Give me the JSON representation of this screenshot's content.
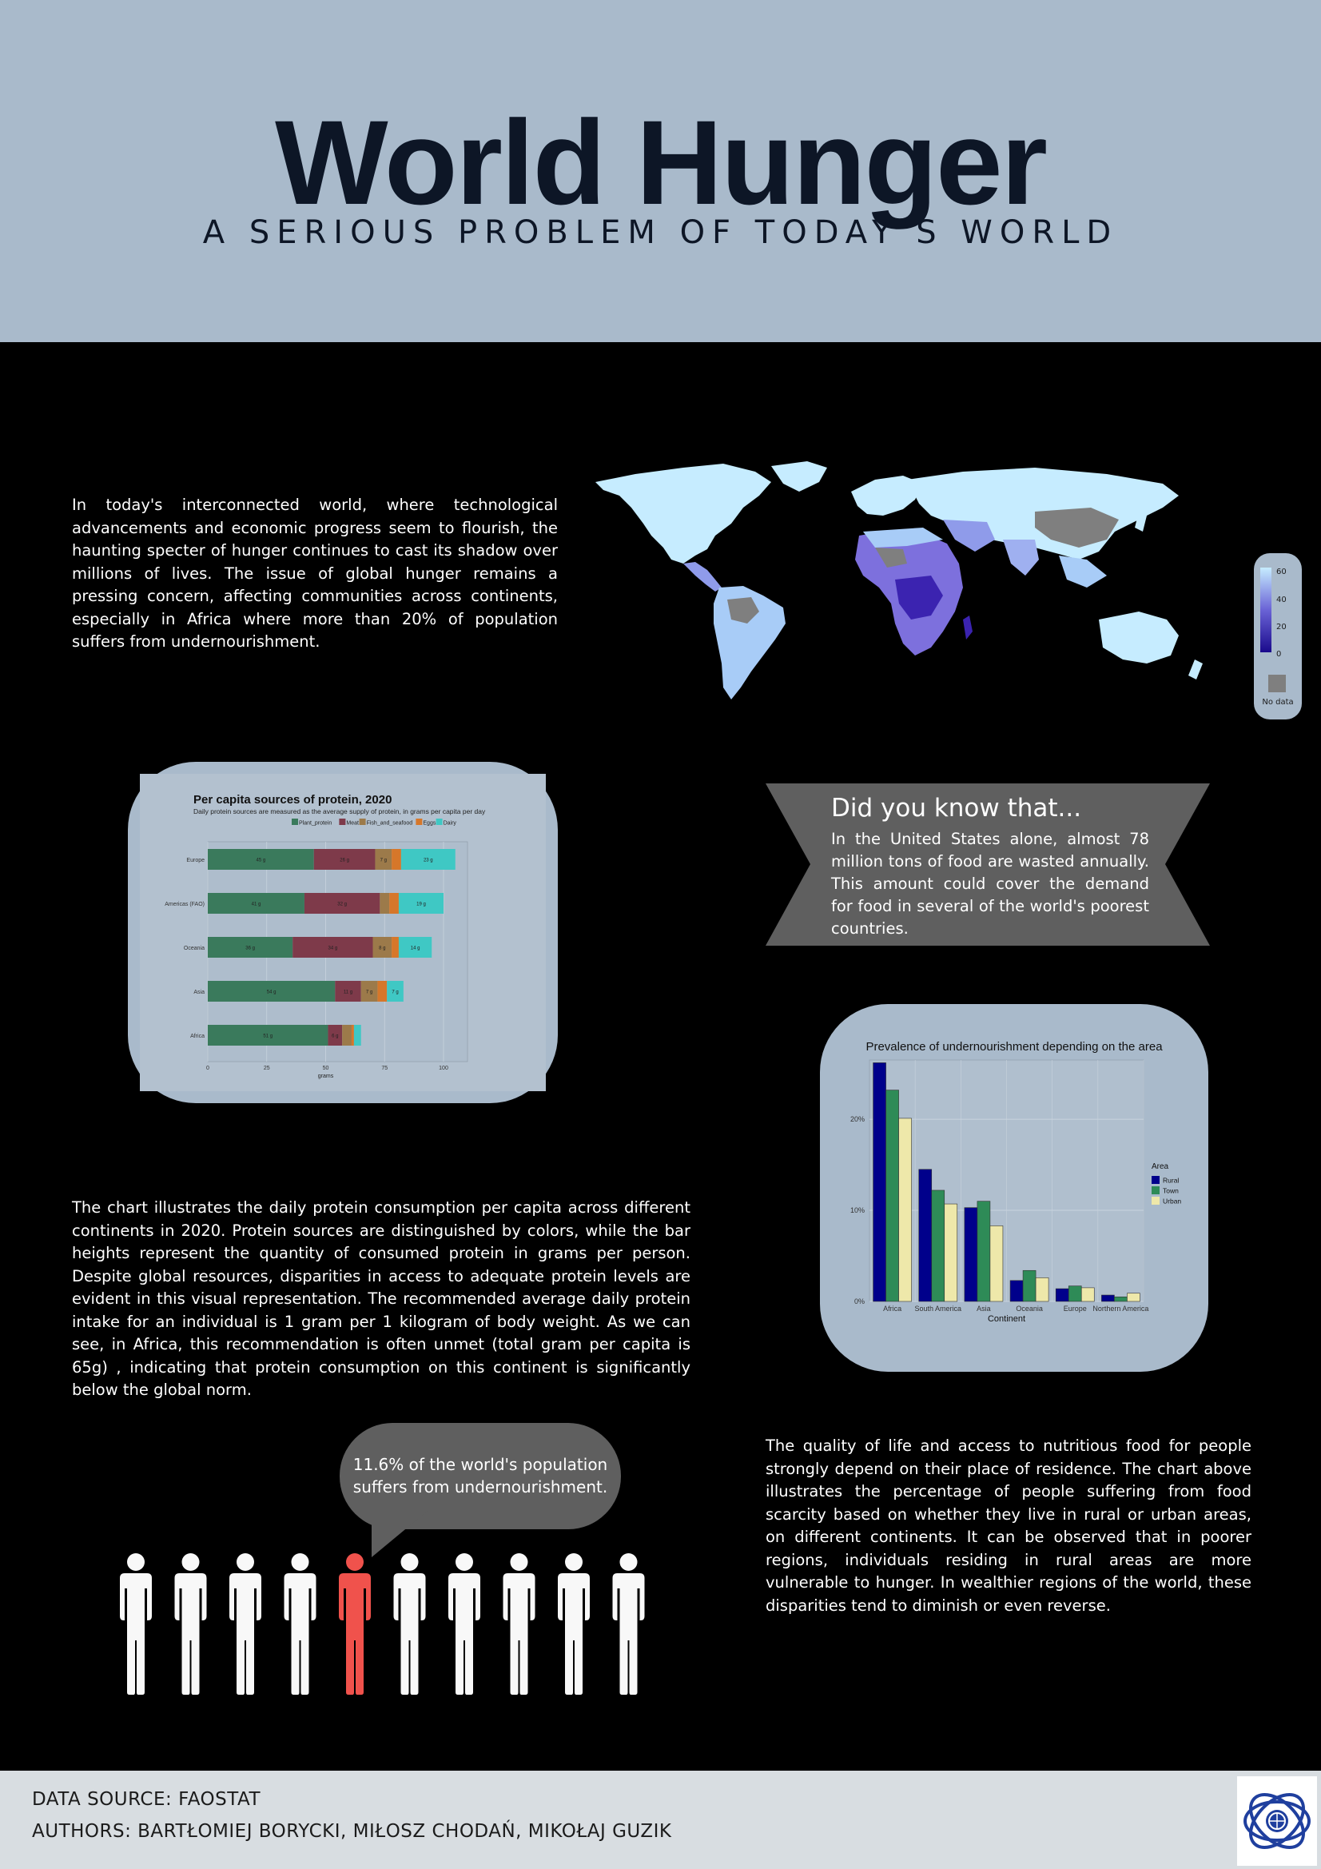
{
  "header": {
    "title": "World Hunger",
    "subtitle": "A SERIOUS PROBLEM OF TODAY’S WORLD"
  },
  "intro_text": "In today's interconnected world, where technological advancements and economic progress seem to flourish, the haunting specter of hunger continues to cast its shadow over millions of lives. The issue of global hunger remains a pressing concern, affecting communities across continents, especially in Africa where more than  20% of population suffers from undernourishment.",
  "map": {
    "legend_ticks": [
      "60",
      "40",
      "20",
      "0"
    ],
    "no_data_label": "No data",
    "colors": {
      "high": "#1a0a8c",
      "low": "#c6ecff",
      "no_data": "#7f7f7f"
    }
  },
  "did_you_know": {
    "title": "Did you know that...",
    "text": "In the United States alone, almost 78 million tons of food are wasted annually. This amount could cover the demand for food in several of the world's poorest countries."
  },
  "protein_text": "The chart illustrates the daily protein consumption per capita across different continents in 2020. Protein sources are distinguished by colors, while the bar heights represent the quantity of consumed protein in grams per person. Despite global resources, disparities in access to adequate protein levels are evident in this visual representation. The recommended average daily protein intake for an individual is 1 gram per 1 kilogram of body weight. As we can see, in Africa, this recommendation is often unmet (total gram per capita is 65g) , indicating that protein consumption on this continent is significantly below the global norm.",
  "area_text": "The quality of life and access to nutritious food for people strongly depend on their place of residence. The chart above illustrates the percentage of people suffering from food scarcity based on whether they live in rural or urban areas, on different continents. It can be observed that in poorer regions, individuals residing in rural areas are more vulnerable to hunger. In wealthier regions of the world, these disparities tend to diminish or even reverse.",
  "bubble_text": "11.6% of the world's population suffers from undernourishment.",
  "people": {
    "total": 10,
    "highlighted_index": 4,
    "color": "#f8f8f8",
    "highlight_color": "#f0524c"
  },
  "footer": {
    "source": "DATA SOURCE: FAOSTAT",
    "authors": "AUTHORS: BARTŁOMIEJ BORYCKI, MIŁOSZ CHODAŃ, MIKOŁAJ GUZIK"
  },
  "chart_data": [
    {
      "type": "bar",
      "orientation": "horizontal",
      "stacked": true,
      "title": "Per capita sources of protein, 2020",
      "subtitle": "Daily protein sources are measured as the average supply of protein, in grams per capita per day",
      "xlabel": "grams",
      "xlim": [
        0,
        100
      ],
      "xticks": [
        "0",
        "25",
        "50",
        "75",
        "100"
      ],
      "categories": [
        "Europe",
        "Americas (FAO)",
        "Oceania",
        "Asia",
        "Africa"
      ],
      "series": [
        {
          "name": "Plant_protein",
          "color": "#3a7a5c",
          "values": [
            45,
            41,
            36,
            54,
            51
          ],
          "labels": [
            "45 g",
            "41 g",
            "36 g",
            "54 g",
            "51 g"
          ]
        },
        {
          "name": "Meat",
          "color": "#7e3a4a",
          "values": [
            26,
            32,
            34,
            11,
            6
          ],
          "labels": [
            "26 g",
            "32 g",
            "34 g",
            "11 g",
            "6 g"
          ]
        },
        {
          "name": "Fish_and_seafood",
          "color": "#9c7a4a",
          "values": [
            7,
            4,
            8,
            7,
            4
          ],
          "labels": [
            "7 g",
            "",
            "8 g",
            "7 g",
            ""
          ]
        },
        {
          "name": "Eggs",
          "color": "#d6772a",
          "values": [
            4,
            4,
            3,
            4,
            1
          ],
          "labels": [
            "",
            "",
            "",
            "",
            ""
          ]
        },
        {
          "name": "Dairy",
          "color": "#3fc8c4",
          "values": [
            23,
            19,
            14,
            7,
            3
          ],
          "labels": [
            "23 g",
            "19 g",
            "14 g",
            "7 g",
            ""
          ]
        }
      ]
    },
    {
      "type": "bar",
      "title": "Prevalence of undernourishment depending on the area",
      "xlabel": "Continent",
      "ylabel": "",
      "ylim": [
        0,
        26.5
      ],
      "yticks": [
        "0%",
        "10%",
        "20%"
      ],
      "legend_title": "Area",
      "categories": [
        "Africa",
        "South America",
        "Asia",
        "Oceania",
        "Europe",
        "Northern America"
      ],
      "series": [
        {
          "name": "Rural",
          "color": "#00008b",
          "values": [
            26.2,
            14.5,
            10.3,
            2.3,
            1.4,
            0.7
          ]
        },
        {
          "name": "Town",
          "color": "#2e8b57",
          "values": [
            23.2,
            12.2,
            11.0,
            3.4,
            1.7,
            0.5
          ]
        },
        {
          "name": "Urban",
          "color": "#eee8aa",
          "values": [
            20.1,
            10.7,
            8.3,
            2.6,
            1.5,
            0.9
          ]
        }
      ]
    }
  ]
}
